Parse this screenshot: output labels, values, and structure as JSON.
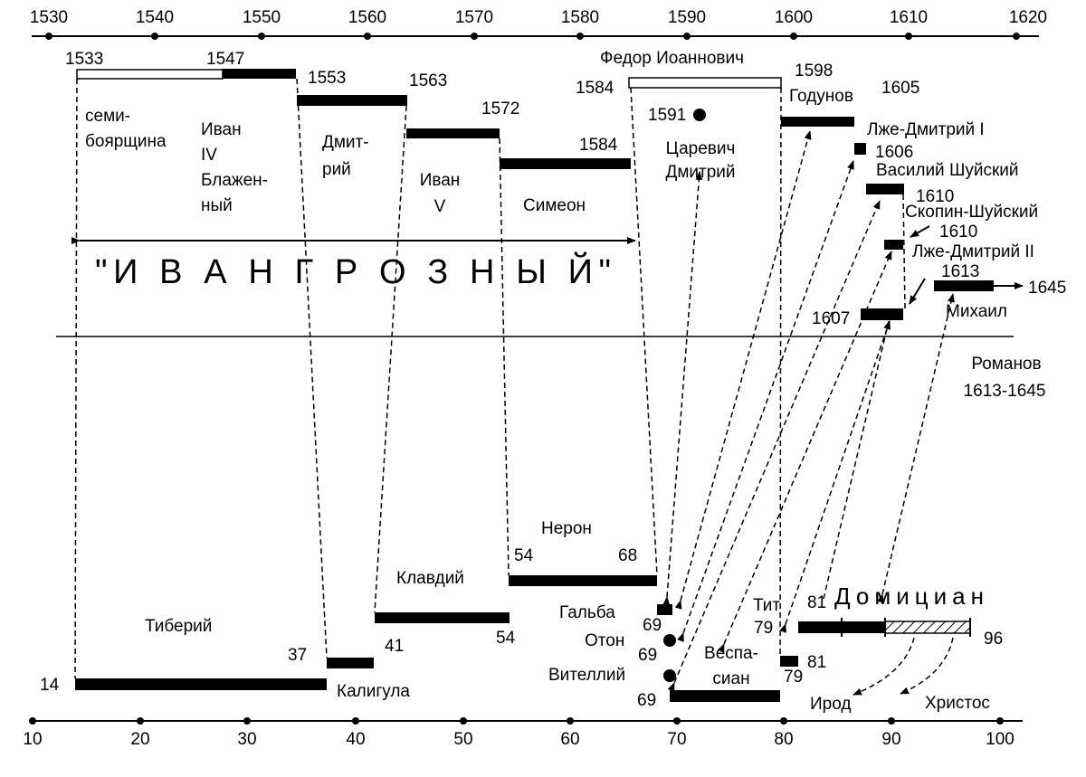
{
  "top_axis": {
    "ticks": [
      "1530",
      "1540",
      "1550",
      "1560",
      "1570",
      "1580",
      "1590",
      "1600",
      "1610",
      "1620"
    ]
  },
  "bottom_axis": {
    "ticks": [
      "10",
      "20",
      "30",
      "40",
      "50",
      "60",
      "70",
      "80",
      "90",
      "100"
    ]
  },
  "top": {
    "y1533": "1533",
    "y1547": "1547",
    "y1553": "1553",
    "y1563": "1563",
    "y1572": "1572",
    "y1584a": "1584",
    "y1584b": "1584",
    "y1598": "1598",
    "y1605": "1605",
    "y1591": "1591",
    "y1606": "1606",
    "y1610a": "1610",
    "y1610b": "1610",
    "y1613": "1613",
    "y1645": "1645",
    "y1607": "1607",
    "semi1": "семи-",
    "semi2": "боярщина",
    "ivan4_1": "Иван",
    "ivan4_2": "IV",
    "ivan4_3": "Блажен-",
    "ivan4_4": "ный",
    "dmitriy1": "Дмит-",
    "dmitriy2": "рий",
    "ivan5_1": "Иван",
    "ivan5_2": "V",
    "simeon": "Симеон",
    "fedor": "Федор Иоаннович",
    "godunov": "Годунов",
    "tsarevich1": "Царевич",
    "tsarevich2": "Дмитрий",
    "lzhe1": "Лже-Дмитрий I",
    "shuisky": "Василий Шуйский",
    "skopin": "Скопин-Шуйский",
    "lzhe2": "Лже-Дмитрий II",
    "mikhail": "Михаил",
    "grozny": "\"И В А Н   Г Р О З Н Ы Й\"",
    "romanov1": "Романов",
    "romanov2": "1613-1645"
  },
  "bottom": {
    "y14": "14",
    "y37": "37",
    "y41": "41",
    "y54a": "54",
    "y54b": "54",
    "y68": "68",
    "y69a": "69",
    "y69b": "69",
    "y69c": "69",
    "y79a": "79",
    "y79b": "79",
    "y81a": "81",
    "y81b": "81",
    "y96": "96",
    "tiberiy": "Тиберий",
    "kaligula": "Калигула",
    "klavdiy": "Клавдий",
    "neron": "Нерон",
    "galba": "Гальба",
    "oton": "Отон",
    "vitelliy": "Вителлий",
    "vespa1": "Веспа-",
    "vespa2": "сиан",
    "tit": "Тит",
    "domician": "Домициан",
    "irod": "Ирод",
    "hristos": "Христос"
  }
}
